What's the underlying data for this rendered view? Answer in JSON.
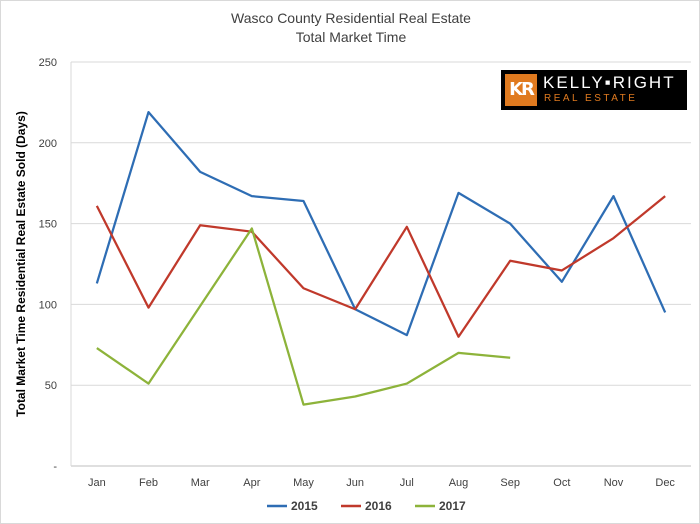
{
  "chart_data": {
    "type": "line",
    "title": "Wasco County Residential Real Estate",
    "subtitle": "Total Market Time",
    "ylabel": "Total Market Time Residential Real Estate Sold (Days)",
    "xlabel": "",
    "categories": [
      "Jan",
      "Feb",
      "Mar",
      "Apr",
      "May",
      "Jun",
      "Jul",
      "Aug",
      "Sep",
      "Oct",
      "Nov",
      "Dec"
    ],
    "ylim": [
      0,
      250
    ],
    "yticks": [
      {
        "value": 0,
        "label": "-"
      },
      {
        "value": 50,
        "label": "50"
      },
      {
        "value": 100,
        "label": "100"
      },
      {
        "value": 150,
        "label": "150"
      },
      {
        "value": 200,
        "label": "200"
      },
      {
        "value": 250,
        "label": "250"
      }
    ],
    "grid": true,
    "legend_position": "bottom",
    "series": [
      {
        "name": "2015",
        "color": "#2e6db4",
        "values": [
          113,
          219,
          182,
          167,
          164,
          97,
          81,
          169,
          150,
          114,
          167,
          95
        ]
      },
      {
        "name": "2016",
        "color": "#c0392b",
        "values": [
          161,
          98,
          149,
          145,
          110,
          97,
          148,
          80,
          127,
          121,
          141,
          167
        ]
      },
      {
        "name": "2017",
        "color": "#8db33a",
        "values": [
          73,
          51,
          99,
          147,
          38,
          43,
          51,
          70,
          67,
          null,
          null,
          null
        ]
      }
    ]
  },
  "logo": {
    "mark": "KR",
    "name": "KELLY▪RIGHT",
    "sub": "REAL ESTATE"
  }
}
